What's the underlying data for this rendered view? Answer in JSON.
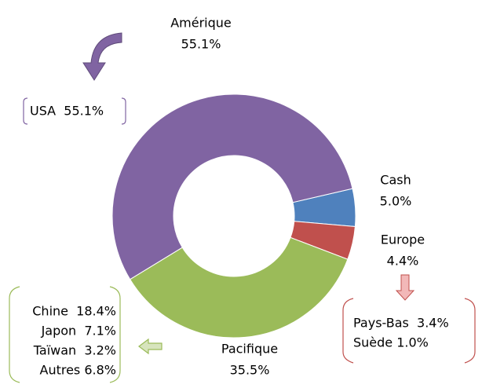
{
  "chart_data": {
    "type": "donut",
    "categories": [
      "Cash",
      "Europe",
      "Pacifique",
      "Amérique"
    ],
    "values": [
      5.0,
      4.4,
      35.5,
      55.1
    ],
    "value_labels": [
      "5.0%",
      "4.4%",
      "35.5%",
      "55.1%"
    ],
    "colors": [
      "#4f81bd",
      "#c0504d",
      "#9bbb59",
      "#8064a2"
    ],
    "annotations": [
      {
        "lines": [
          "USA  55.1%"
        ]
      },
      {
        "lines": [
          "Pays-Bas  3.4%",
          "Suède 1.0%"
        ]
      },
      {
        "lines": [
          "Chine  18.4%",
          "Japon  7.1%",
          "Taïwan  3.2%",
          "Autres 6.8%"
        ]
      }
    ]
  }
}
